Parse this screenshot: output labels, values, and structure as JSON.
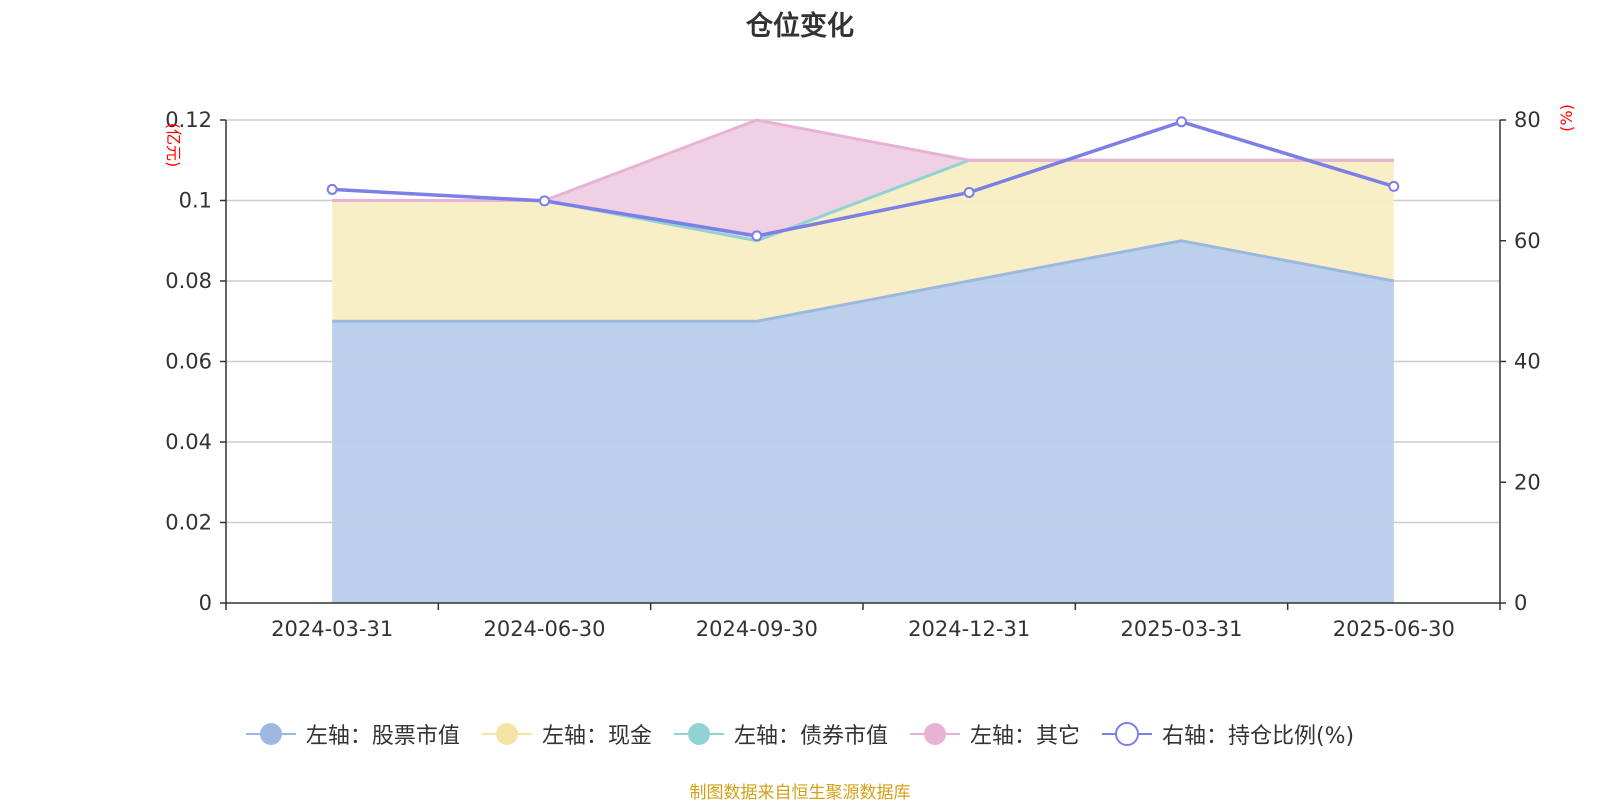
{
  "chart_data": {
    "type": "area",
    "title": "仓位变化",
    "categories": [
      "2024-03-31",
      "2024-06-30",
      "2024-09-30",
      "2024-12-31",
      "2025-03-31",
      "2025-06-30"
    ],
    "left_axis": {
      "unit": "(亿元)",
      "ylim": [
        0,
        0.12
      ],
      "ticks": [
        "0",
        "0.02",
        "0.04",
        "0.06",
        "0.08",
        "0.1",
        "0.12"
      ]
    },
    "right_axis": {
      "unit": "(%)",
      "ylim": [
        0,
        80
      ],
      "ticks": [
        "0",
        "20",
        "40",
        "60",
        "80"
      ]
    },
    "series": [
      {
        "name": "左轴：股票市值",
        "axis": "left",
        "type": "stacked-area",
        "color": "#9db8e0",
        "fill": "#b8cdea",
        "values": [
          0.07,
          0.07,
          0.07,
          0.08,
          0.09,
          0.08
        ]
      },
      {
        "name": "左轴：现金",
        "axis": "left",
        "type": "stacked-area",
        "color": "#f6e4a4",
        "fill": "#f9eec3",
        "values": [
          0.03,
          0.03,
          0.02,
          0.03,
          0.02,
          0.03
        ]
      },
      {
        "name": "左轴：债券市值",
        "axis": "left",
        "type": "stacked-area",
        "color": "#8fd3d3",
        "fill": "#bfe6e6",
        "values": [
          0,
          0,
          0,
          0,
          0,
          0
        ]
      },
      {
        "name": "左轴：其它",
        "axis": "left",
        "type": "stacked-area",
        "color": "#e6b3d6",
        "fill": "#efcde3",
        "values": [
          0,
          0,
          0.03,
          0,
          0,
          0
        ]
      },
      {
        "name": "右轴：持仓比例(%)",
        "axis": "right",
        "type": "line",
        "color": "#7b7fe6",
        "values": [
          68.5,
          66.6,
          60.8,
          68.0,
          79.7,
          69.0
        ]
      }
    ],
    "grid": true,
    "legend_position": "bottom"
  },
  "footer": {
    "source": "制图数据来自恒生聚源数据库"
  }
}
